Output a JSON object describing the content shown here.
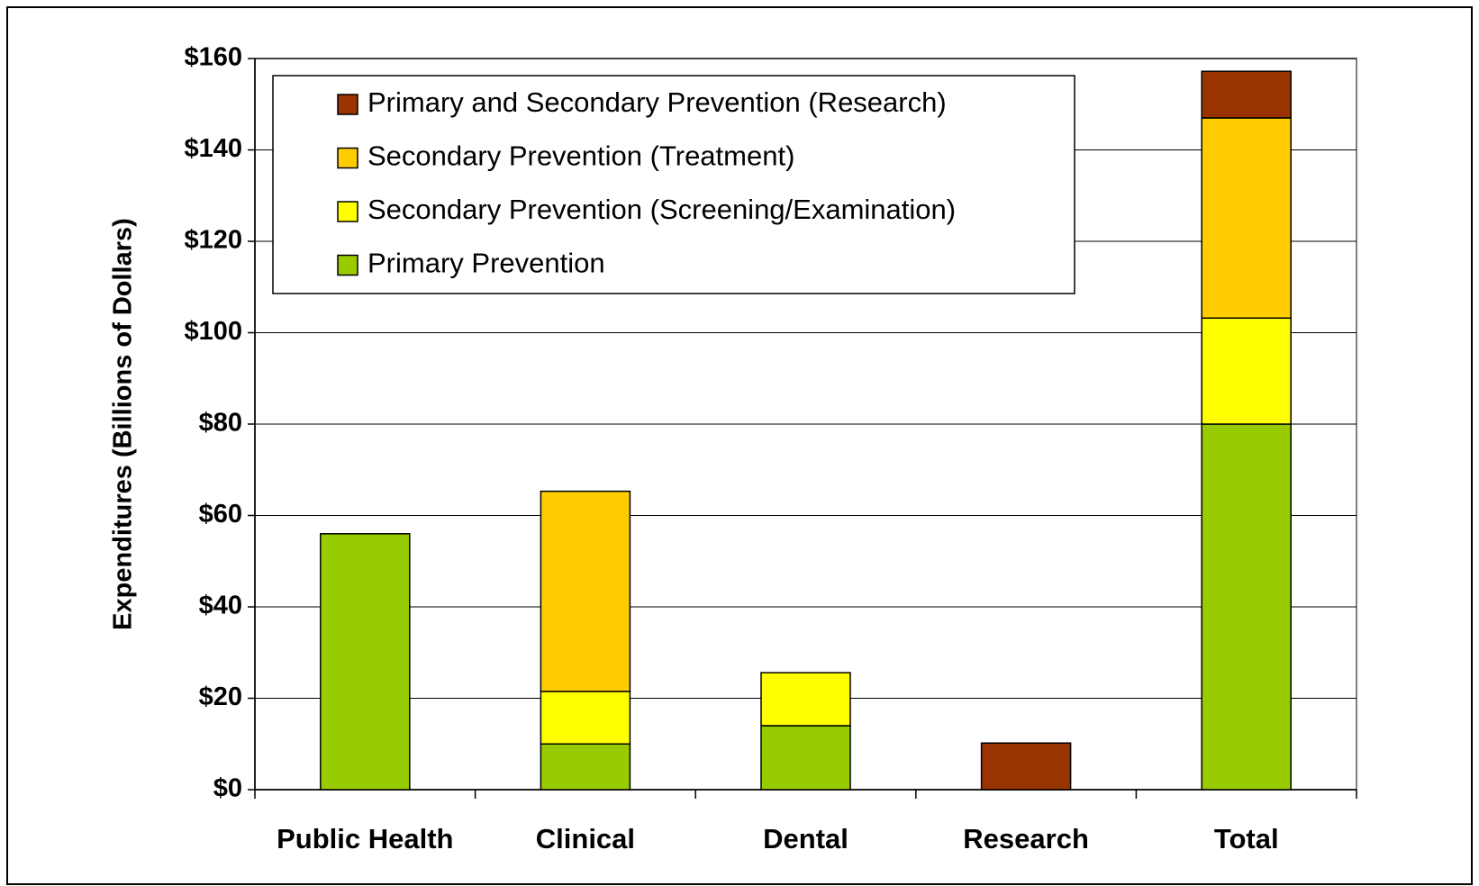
{
  "chart_data": {
    "type": "stacked_bar",
    "y_label": "Expenditures (Billions of Dollars)",
    "categories": [
      "Public Health",
      "Clinical",
      "Dental",
      "Research",
      "Total"
    ],
    "series": [
      {
        "name": "Primary Prevention",
        "color": "#99cc00",
        "values": [
          56,
          10,
          14,
          null,
          80
        ]
      },
      {
        "name": "Secondary Prevention (Screening/Examination)",
        "color": "#ffff00",
        "values": [
          null,
          11.5,
          11.6,
          null,
          23.2
        ]
      },
      {
        "name": "Secondary Prevention (Treatment)",
        "color": "#ffcc00",
        "values": [
          null,
          43.8,
          null,
          null,
          43.8
        ]
      },
      {
        "name": "Primary and Secondary Prevention (Research)",
        "color": "#993300",
        "values": [
          null,
          null,
          null,
          10.2,
          10.2
        ]
      }
    ],
    "ylim": [
      0,
      160
    ],
    "yticks": [
      {
        "value": 0,
        "label": "$0"
      },
      {
        "value": 20,
        "label": "$20"
      },
      {
        "value": 40,
        "label": "$40"
      },
      {
        "value": 60,
        "label": "$60"
      },
      {
        "value": 80,
        "label": "$80"
      },
      {
        "value": 100,
        "label": "$100"
      },
      {
        "value": 120,
        "label": "$120"
      },
      {
        "value": 140,
        "label": "$140"
      },
      {
        "value": 160,
        "label": "$160"
      }
    ],
    "grid": true,
    "legend": "upper left"
  }
}
